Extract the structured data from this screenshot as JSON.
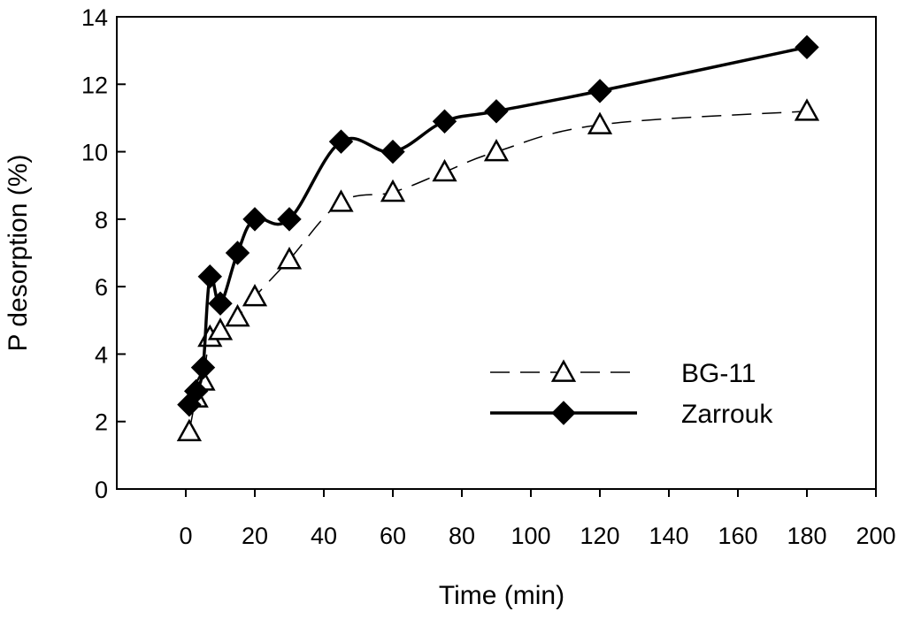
{
  "chart_data": {
    "type": "line",
    "title": "",
    "xlabel": "Time (min)",
    "ylabel": "P desorption (%)",
    "xlim": [
      -20,
      200
    ],
    "ylim": [
      0,
      14
    ],
    "xticks": [
      0,
      20,
      40,
      60,
      80,
      100,
      120,
      140,
      160,
      180,
      200
    ],
    "yticks": [
      0,
      2,
      4,
      6,
      8,
      10,
      12,
      14
    ],
    "grid": false,
    "legend_position": "right",
    "series": [
      {
        "name": "BG-11",
        "marker": "open-triangle",
        "line_style": "dashed",
        "x": [
          1,
          3,
          5,
          7,
          10,
          15,
          20,
          30,
          45,
          60,
          75,
          90,
          120,
          180
        ],
        "y": [
          1.7,
          2.7,
          3.2,
          4.5,
          4.7,
          5.1,
          5.7,
          6.8,
          8.5,
          8.8,
          9.4,
          10.0,
          10.8,
          11.2
        ]
      },
      {
        "name": "Zarrouk",
        "marker": "filled-diamond",
        "line_style": "solid",
        "x": [
          1,
          3,
          5,
          7,
          10,
          15,
          20,
          30,
          45,
          60,
          75,
          90,
          120,
          180
        ],
        "y": [
          2.5,
          2.9,
          3.6,
          6.3,
          5.5,
          7.0,
          8.0,
          8.0,
          10.3,
          10.0,
          10.9,
          11.2,
          11.8,
          13.1
        ]
      }
    ]
  }
}
